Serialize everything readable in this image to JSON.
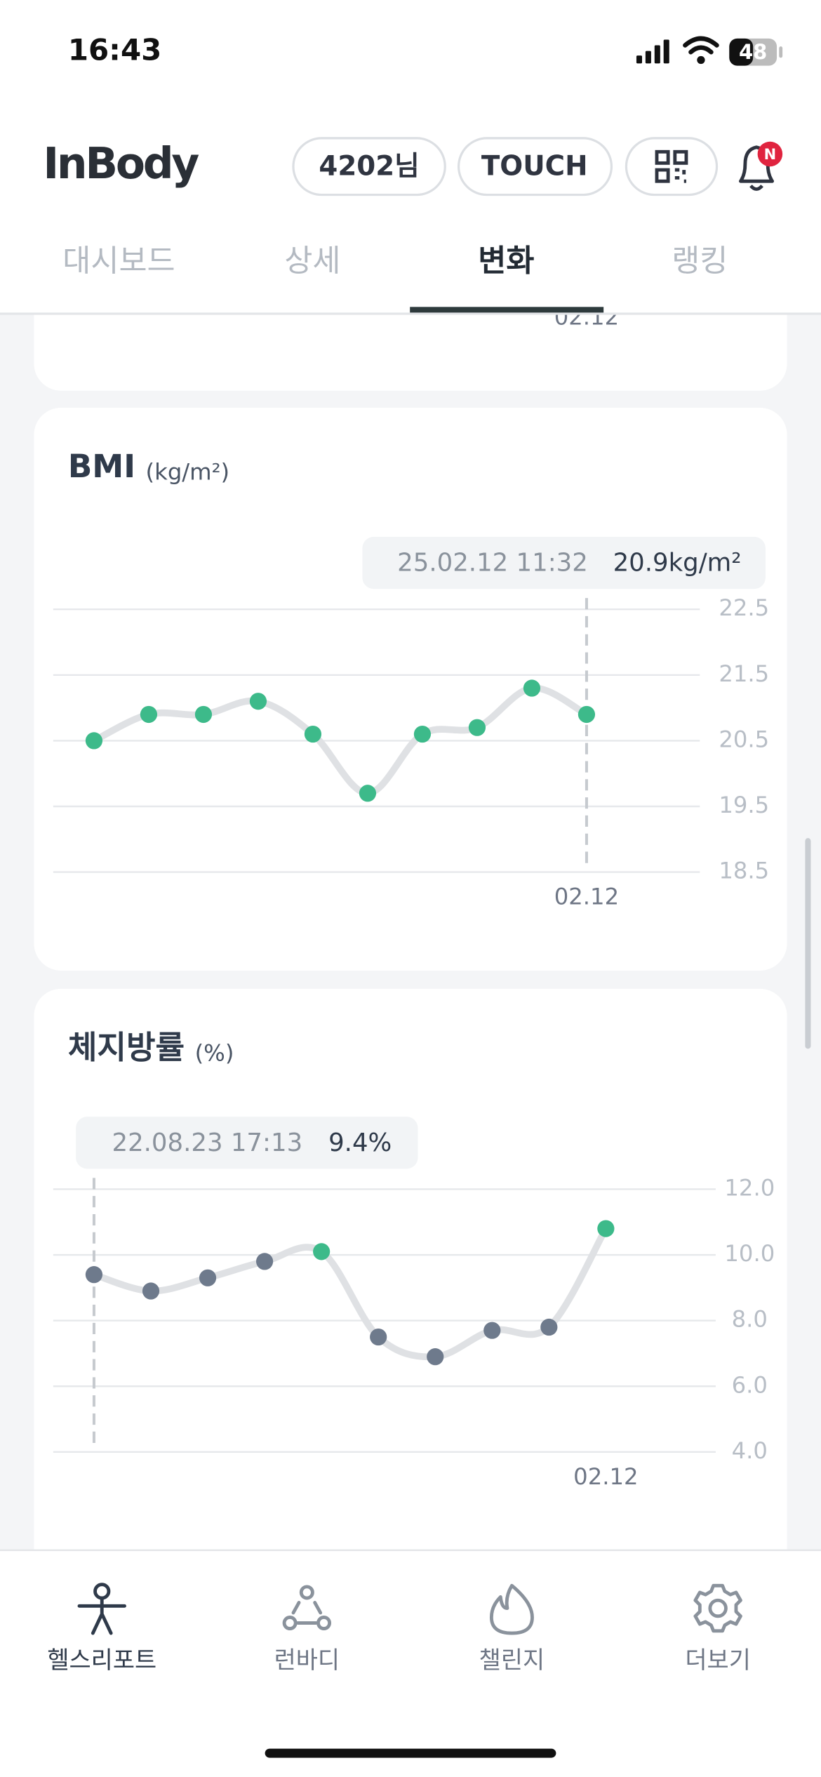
{
  "status_bar": {
    "time": "16:43",
    "battery": "48"
  },
  "header": {
    "logo": "InBody",
    "user": "4202님",
    "touch": "TOUCH",
    "badge": "N"
  },
  "tabs": [
    "대시보드",
    "상세",
    "변화",
    "랭킹"
  ],
  "active_tab": 2,
  "previous_card": {
    "x_label": "02.12"
  },
  "chart_data": [
    {
      "type": "line",
      "title": "BMI",
      "unit": "(kg/m²)",
      "categories": [
        null,
        null,
        null,
        null,
        null,
        null,
        null,
        null,
        null,
        "02.12"
      ],
      "values": [
        20.5,
        20.9,
        20.9,
        21.1,
        20.6,
        19.7,
        20.6,
        20.7,
        21.3,
        20.9
      ],
      "point_colors": [
        "#3dba8a",
        "#3dba8a",
        "#3dba8a",
        "#3dba8a",
        "#3dba8a",
        "#3dba8a",
        "#3dba8a",
        "#3dba8a",
        "#3dba8a",
        "#3dba8a"
      ],
      "line_color": "#dfe1e4",
      "ylim": [
        18.5,
        22.5
      ],
      "yticks": [
        18.5,
        19.5,
        20.5,
        21.5,
        22.5
      ],
      "grid": true,
      "tooltip": {
        "label": "25.02.12 11:32",
        "value_label": "20.9kg/m²",
        "index": 9
      }
    },
    {
      "type": "line",
      "title": "체지방률",
      "unit": "(%)",
      "categories": [
        null,
        null,
        null,
        null,
        null,
        null,
        null,
        null,
        null,
        "02.12"
      ],
      "values": [
        9.4,
        8.9,
        9.3,
        9.8,
        10.1,
        7.5,
        6.9,
        7.7,
        7.8,
        10.8
      ],
      "point_colors": [
        "#6e7a8c",
        "#6e7a8c",
        "#6e7a8c",
        "#6e7a8c",
        "#3dba8a",
        "#6e7a8c",
        "#6e7a8c",
        "#6e7a8c",
        "#6e7a8c",
        "#3dba8a"
      ],
      "line_color": "#dfe1e4",
      "ylim": [
        4,
        12
      ],
      "yticks": [
        {
          "value": 4,
          "label": "4.0"
        },
        {
          "value": 6,
          "label": "6.0"
        },
        {
          "value": 8,
          "label": "8.0"
        },
        {
          "value": 10,
          "label": "10.0"
        },
        {
          "value": 12,
          "label": "12.0"
        }
      ],
      "grid": true,
      "tooltip": {
        "label": "22.08.23 17:13",
        "value_label": "9.4%",
        "index": 0
      }
    }
  ],
  "nav": [
    "헬스리포트",
    "런바디",
    "챌린지",
    "더보기"
  ],
  "active_nav": 0
}
